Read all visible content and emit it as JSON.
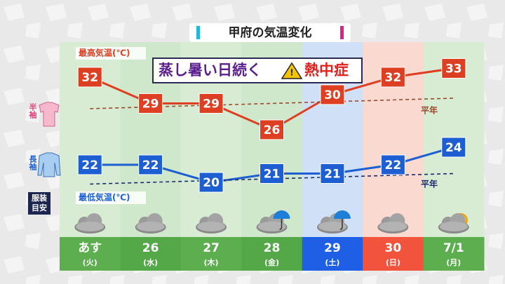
{
  "chart_data": {
    "type": "line",
    "title": "甲府の気温変化",
    "headline": "蒸し暑い日続く",
    "warning": "熱中症",
    "categories": [
      "あす",
      "26",
      "27",
      "28",
      "29",
      "30",
      "7/1"
    ],
    "weekdays": [
      "(火)",
      "(水)",
      "(木)",
      "(金)",
      "(土)",
      "(日)",
      "(月)"
    ],
    "series": [
      {
        "name": "最高気温(℃)",
        "color": "#dd3f22",
        "values": [
          32,
          29,
          29,
          26,
          30,
          32,
          33
        ]
      },
      {
        "name": "最低気温(℃)",
        "color": "#1d5fd2",
        "values": [
          22,
          22,
          20,
          21,
          21,
          22,
          24
        ]
      },
      {
        "name": "平年",
        "color": "#9a4a30",
        "dashed": true,
        "values": [
          28.4,
          28.6,
          28.8,
          29.0,
          29.2,
          29.4,
          29.6
        ]
      },
      {
        "name": "平年",
        "color": "#1c2c6c",
        "dashed": true,
        "values": [
          19.8,
          20.0,
          20.2,
          20.4,
          20.6,
          20.8,
          21.0
        ]
      }
    ],
    "ylim": [
      16,
      36
    ]
  },
  "clothing": {
    "short_sleeve": "半袖",
    "long_sleeve": "長袖",
    "guide": [
      "服装",
      "目安"
    ]
  }
}
